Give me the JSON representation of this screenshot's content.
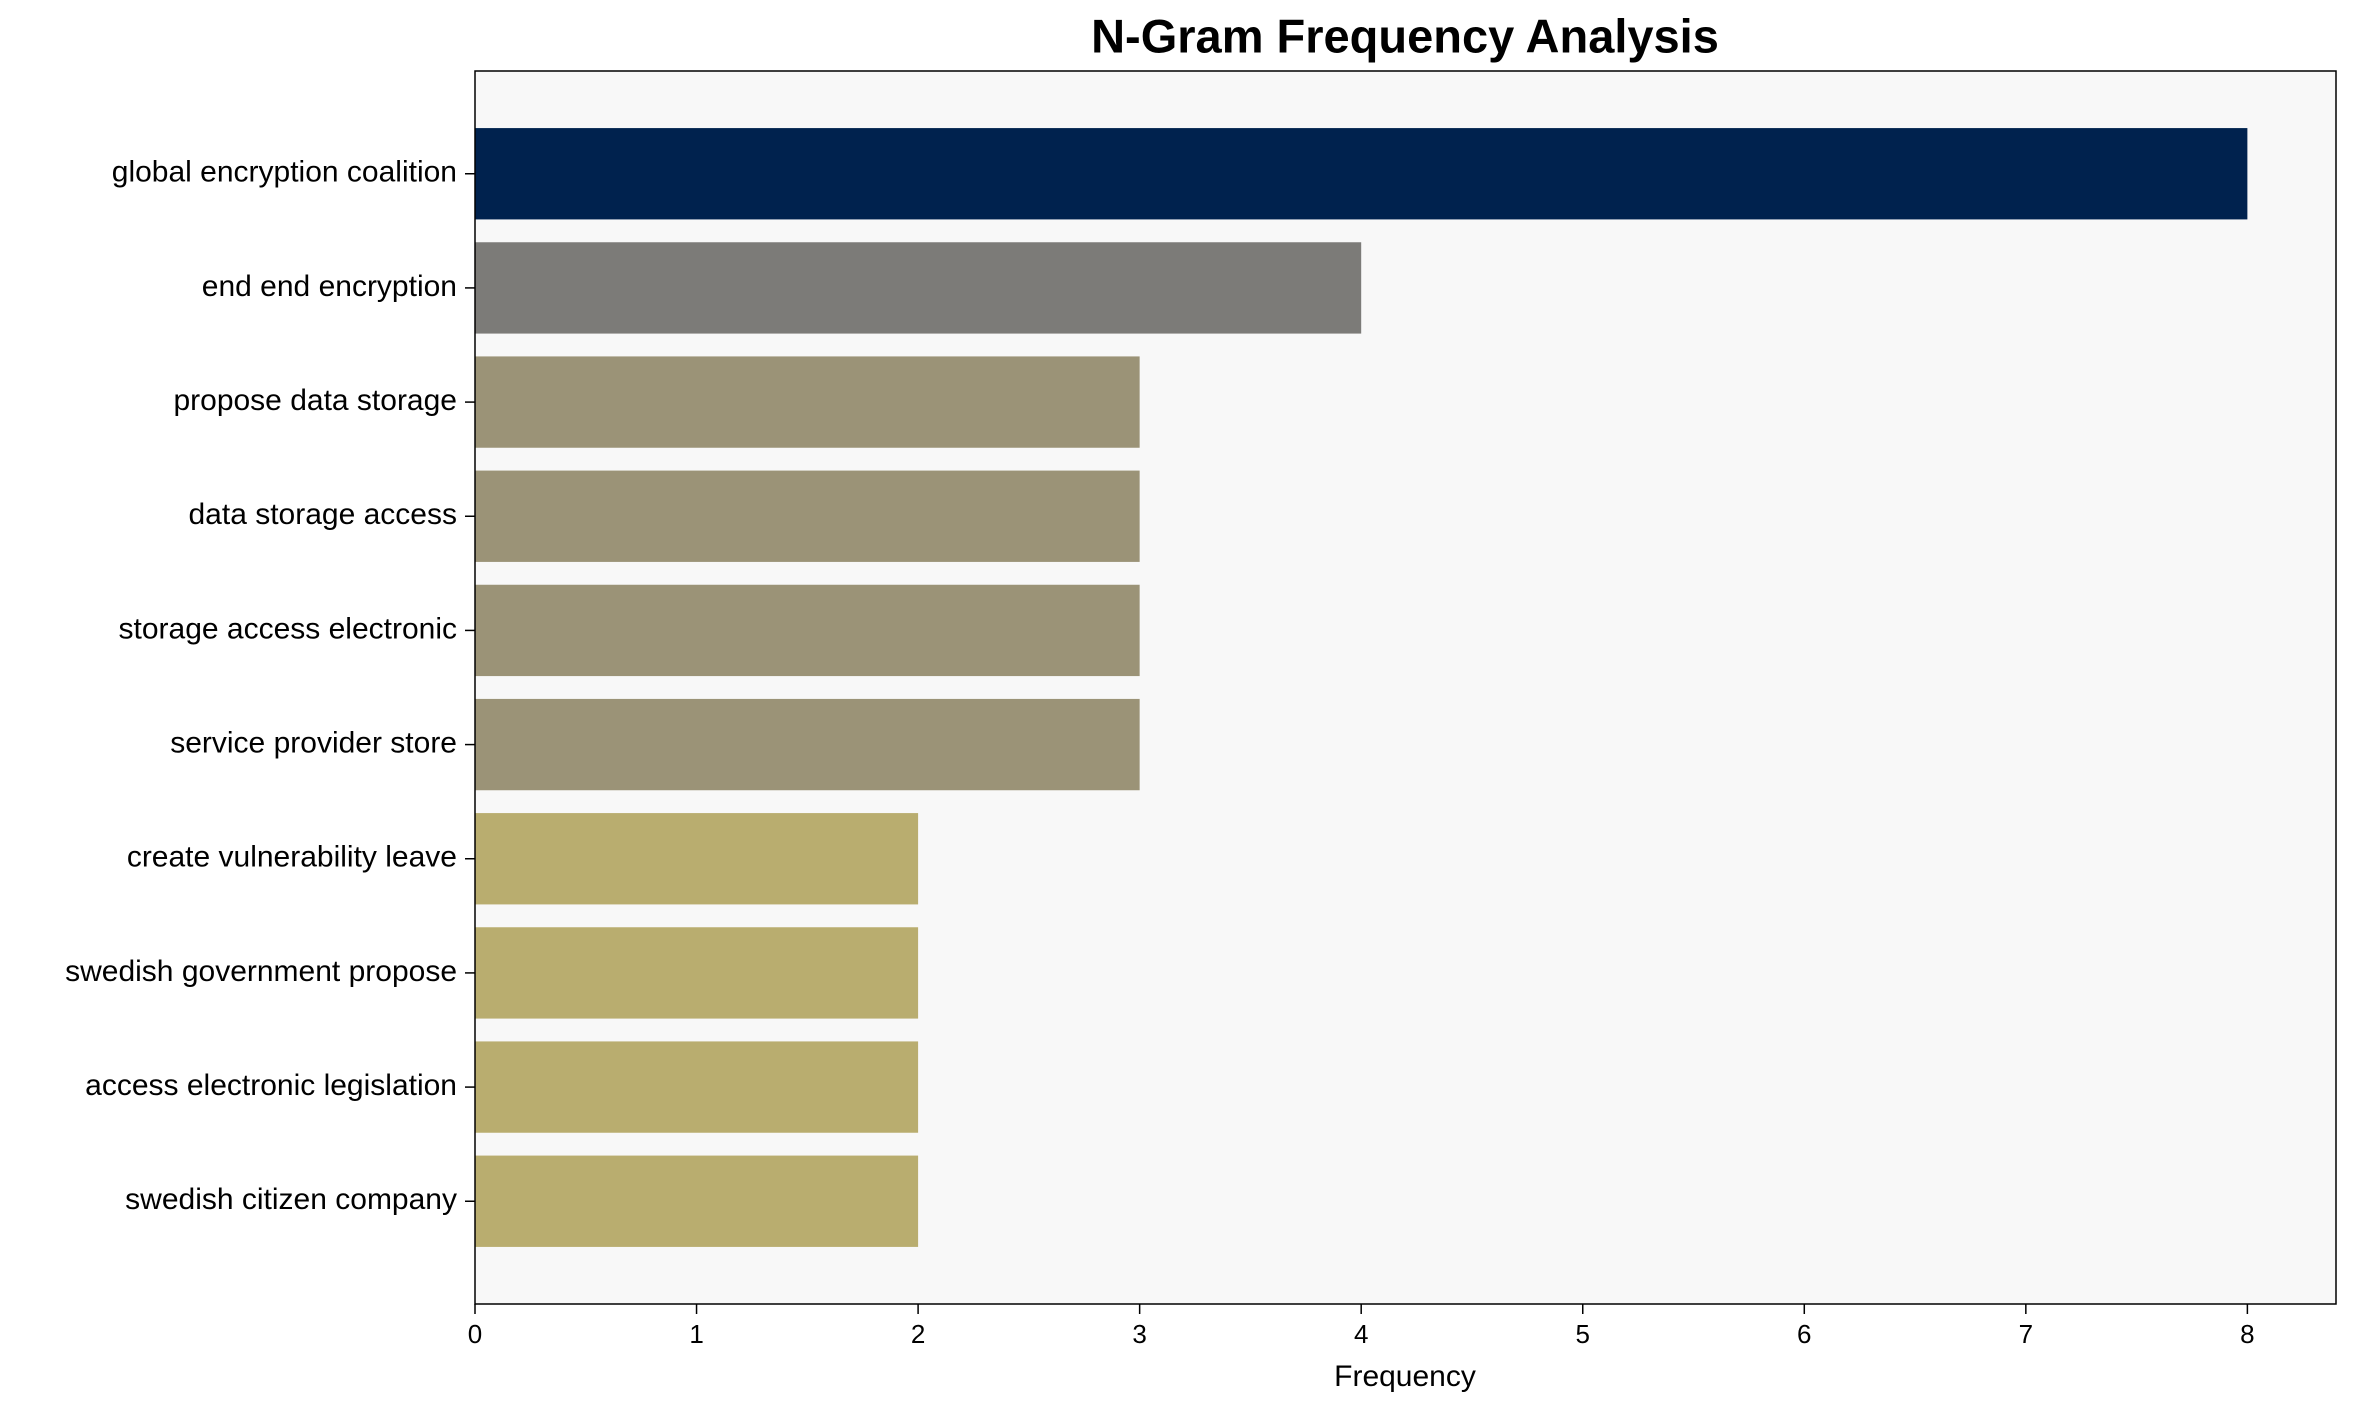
{
  "chart_data": {
    "type": "barh",
    "title": "N-Gram Frequency Analysis",
    "x_label": "Frequency",
    "categories": [
      "global encryption coalition",
      "end end encryption",
      "propose data storage",
      "data storage access",
      "storage access electronic",
      "service provider store",
      "create vulnerability leave",
      "swedish government propose",
      "access electronic legislation",
      "swedish citizen company"
    ],
    "values": [
      8,
      4,
      3,
      3,
      3,
      3,
      2,
      2,
      2,
      2
    ],
    "colors": [
      "#00224e",
      "#7c7b78",
      "#9b9377",
      "#9b9377",
      "#9b9377",
      "#9b9377",
      "#b9ad6f",
      "#b9ad6f",
      "#b9ad6f",
      "#b9ad6f"
    ],
    "xlim": [
      0,
      8.4
    ],
    "xticks": [
      0,
      1,
      2,
      3,
      4,
      5,
      6,
      7,
      8
    ]
  }
}
